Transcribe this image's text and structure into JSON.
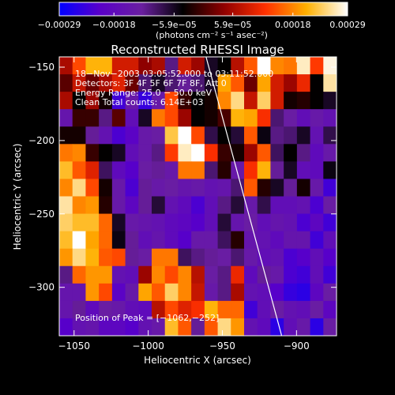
{
  "chart_data": {
    "type": "heatmap",
    "title": "Reconstructed RHESSI Image",
    "xlabel": "Heliocentric X (arcsec)",
    "ylabel": "Heliocentric Y (arcsec)",
    "xlim": [
      -1060,
      -873
    ],
    "ylim": [
      -333,
      -143
    ],
    "x_ticks": [
      -1050,
      -1000,
      -950,
      -900
    ],
    "x_tick_labels": [
      "−1050",
      "−1000",
      "−950",
      "−900"
    ],
    "y_ticks": [
      -150,
      -200,
      -250,
      -300
    ],
    "y_tick_labels": [
      "−150",
      "−200",
      "−250",
      "−300"
    ],
    "colorbar": {
      "range": [
        -0.00029,
        0.00029
      ],
      "ticks": [
        -0.00029,
        -0.00018,
        -5.9e-05,
        5.9e-05,
        0.00018,
        0.00029
      ],
      "tick_labels": [
        "−0.00029",
        "−0.00018",
        "−5.9e−05",
        "5.9e−05",
        "0.00018",
        "0.00029"
      ],
      "unit_label": "(photons cm⁻² s⁻¹ asec⁻²)",
      "colors": [
        "#0000ff",
        "#5a00c8",
        "#6a1fa0",
        "#000000",
        "#900000",
        "#ff3000",
        "#ffb000",
        "#ffffff"
      ]
    },
    "info_lines": [
      "18−Nov−2003 03:05:52.000 to 03:11:52.000",
      "Detectors: 3F 4F 5F 6F 7F 8F, Att 0",
      "Energy Range: 25.0 − 50.0 keV",
      "Clean     Total counts: 6.14E+03"
    ],
    "peak_label": "Position of Peak = [−1062,−252]",
    "peak": [
      -1062,
      -252
    ],
    "limb_line": [
      [
        -961,
        -143
      ],
      [
        -910,
        -333
      ]
    ],
    "image_values": [
      [
        6e-05,
        0.00014,
        0.00021,
        0.00021,
        9e-05,
        9e-05,
        4e-05,
        6e-05,
        -0.00011,
        9e-05,
        5e-05,
        -6e-05,
        -4e-05,
        7e-05,
        0.00015,
        0.0003,
        0.00018,
        0.00017,
        0.00027,
        0.00013,
        0.00028
      ],
      [
        1e-05,
        8e-05,
        2e-05,
        6e-05,
        0.0001,
        2e-05,
        -0.0001,
        -6e-05,
        -0.0001,
        -0.00012,
        -0.0001,
        -6e-05,
        0.0002,
        0.00015,
        2e-05,
        0.0002,
        9e-05,
        5e-05,
        0.00011,
        -4e-05,
        0.00026
      ],
      [
        6e-05,
        -4e-05,
        5e-05,
        -3e-05,
        -0.00023,
        -0.00014,
        -0.00024,
        -0.00014,
        0.00014,
        -1e-05,
        -4e-05,
        -3e-05,
        0.00018,
        0.00025,
        8e-05,
        0.00024,
        9e-05,
        -3e-05,
        -2e-05,
        -4e-05,
        -6e-05
      ],
      [
        -0.00015,
        -1e-05,
        -1e-05,
        -0.00011,
        1e-05,
        -0.00017,
        -6e-05,
        0.00017,
        0.00014,
        5e-05,
        -4e-05,
        -3e-05,
        0.0,
        0.00021,
        0.0002,
        0.00012,
        -0.0001,
        -0.00013,
        -0.00017,
        -0.00014,
        -0.00016
      ],
      [
        -3e-05,
        -3e-05,
        -0.00012,
        -0.00016,
        -0.00022,
        -0.0002,
        -0.00014,
        -0.00013,
        0.00023,
        0.0003,
        0.00014,
        -8e-05,
        -4e-05,
        -7e-05,
        0.00015,
        -5e-05,
        -0.00011,
        -0.0001,
        -6e-05,
        -0.00016,
        -8e-05
      ],
      [
        0.00017,
        0.00018,
        -1e-05,
        -4e-05,
        -6e-05,
        -0.00017,
        -0.00014,
        -0.00011,
        0.00013,
        0.00027,
        0.0003,
        0.00012,
        -1e-05,
        -3e-05,
        5e-05,
        0.00015,
        -9e-05,
        -4e-05,
        -0.00011,
        -0.00018,
        -0.00014
      ],
      [
        0.00022,
        0.00015,
        0.0001,
        -9e-05,
        -0.00018,
        -0.00021,
        -0.00013,
        -0.00012,
        -0.00014,
        0.00017,
        0.00017,
        -0.0001,
        -2e-05,
        -0.00014,
        0.00012,
        0.00021,
        -0.00012,
        -6e-05,
        -0.00017,
        -0.00018,
        -5e-05
      ],
      [
        0.00018,
        0.00025,
        0.00014,
        -3e-05,
        -0.00014,
        -0.00022,
        -0.00012,
        -0.00014,
        -0.00013,
        -0.00015,
        -0.00014,
        -0.00016,
        -0.00015,
        -0.0001,
        0.00015,
        -2e-05,
        -6e-05,
        -0.00012,
        -3e-05,
        -0.00014,
        -0.00023
      ],
      [
        0.00026,
        0.00018,
        0.00019,
        -2e-05,
        -0.00014,
        -0.00019,
        -0.00012,
        -7e-05,
        -0.00016,
        -0.00018,
        -0.00022,
        -0.00017,
        -0.00011,
        -7e-05,
        -0.00014,
        -8e-05,
        -0.00017,
        -0.00017,
        -0.00016,
        -0.00022,
        -0.00013
      ],
      [
        0.00024,
        0.00022,
        0.00022,
        0.00016,
        -6e-05,
        -0.00014,
        -0.00015,
        -0.00016,
        -0.00018,
        -0.00019,
        -0.00021,
        -0.00017,
        -7e-05,
        -0.00015,
        -0.00013,
        -0.00017,
        -0.00015,
        -0.00016,
        -0.00022,
        -0.00019,
        -0.00023
      ],
      [
        0.00022,
        0.0003,
        0.0002,
        0.00016,
        -5e-05,
        -0.00012,
        -0.00017,
        -0.00015,
        -0.00018,
        -0.00021,
        -0.00014,
        -0.00014,
        -9e-05,
        -2e-05,
        -0.00015,
        -0.00016,
        -0.00018,
        -0.00015,
        -0.00015,
        -0.00023,
        -0.00017
      ],
      [
        0.00019,
        0.00025,
        0.00021,
        0.00015,
        0.00014,
        -0.00012,
        -0.00013,
        0.00017,
        0.00017,
        -9e-05,
        -0.00011,
        -0.00012,
        -0.00013,
        -0.0001,
        -0.00014,
        -0.00017,
        -0.00016,
        -0.00022,
        -0.00021,
        -0.00017,
        -0.00021
      ],
      [
        -0.00011,
        0.00016,
        0.00019,
        0.00019,
        -0.00016,
        -0.00017,
        5e-05,
        0.00018,
        0.00014,
        0.00018,
        7e-05,
        -0.00013,
        -0.00011,
        0.00011,
        -0.00018,
        -0.00012,
        -0.00014,
        -0.00022,
        -0.00023,
        -0.00017,
        -0.00023
      ],
      [
        -0.00015,
        -0.00015,
        0.00019,
        0.00014,
        -0.0002,
        -0.00014,
        0.0002,
        0.00015,
        0.00024,
        0.00018,
        8e-05,
        -0.00014,
        -0.00011,
        6e-05,
        -0.00016,
        -0.00017,
        -0.00021,
        -0.00024,
        -0.00025,
        -0.00019,
        -0.00013
      ],
      [
        -0.00015,
        -0.00012,
        -0.00018,
        -0.00013,
        -0.00014,
        -0.00017,
        -0.00018,
        7e-05,
        0.00014,
        0.0001,
        0.00012,
        0.00021,
        0.00016,
        0.00016,
        -0.00023,
        -0.00017,
        -0.00013,
        -0.00016,
        -0.00017,
        -0.00013,
        -0.00019
      ],
      [
        -0.00021,
        -0.00016,
        -0.00015,
        -0.00019,
        -0.00019,
        -0.00021,
        -0.00016,
        -0.00014,
        0.00022,
        0.00015,
        -0.00012,
        0.00015,
        0.00025,
        0.00019,
        -0.00016,
        -0.00018,
        -0.00025,
        -0.00017,
        -0.00014,
        -0.00025,
        -0.00013
      ]
    ]
  }
}
